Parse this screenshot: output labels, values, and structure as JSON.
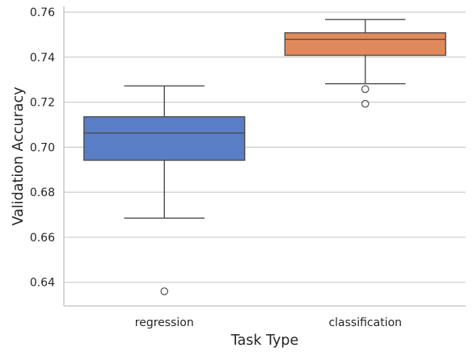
{
  "chart_data": {
    "type": "box",
    "xlabel": "Task Type",
    "ylabel": "Validation Accuracy",
    "ylim": [
      0.6295,
      0.7625
    ],
    "yticks": [
      0.64,
      0.66,
      0.68,
      0.7,
      0.72,
      0.74,
      0.76
    ],
    "ytick_labels": [
      "0.64",
      "0.66",
      "0.68",
      "0.70",
      "0.72",
      "0.74",
      "0.76"
    ],
    "grid": "horizontal",
    "categories": [
      "regression",
      "classification"
    ],
    "boxes": [
      {
        "category": "regression",
        "color": "#5a7ec6",
        "whisker_low": 0.6685,
        "q1": 0.6942,
        "median": 0.7063,
        "q3": 0.7135,
        "whisker_high": 0.7272,
        "outliers": [
          0.636
        ]
      },
      {
        "category": "classification",
        "color": "#e2895b",
        "whisker_low": 0.7282,
        "q1": 0.7408,
        "median": 0.7479,
        "q3": 0.7508,
        "whisker_high": 0.7567,
        "outliers": [
          0.7258,
          0.7193
        ]
      }
    ]
  }
}
